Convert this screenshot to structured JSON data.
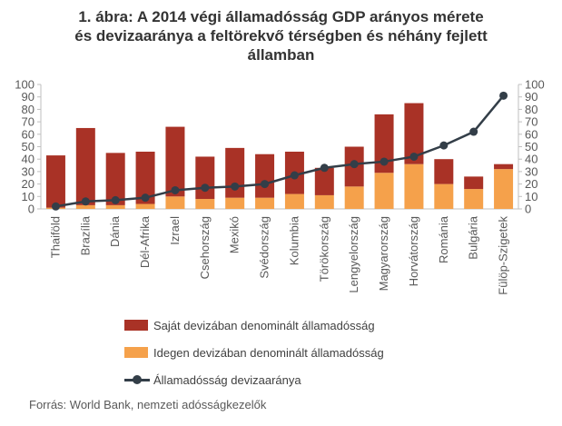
{
  "title": {
    "line1": "1. ábra: A 2014 végi államadósság GDP arányos mérete",
    "line2": "és devizaaránya a feltörekvő térségben és néhány fejlett",
    "line3": "államban"
  },
  "source": "Forrás: World Bank, nemzeti adósságkezelők",
  "colors": {
    "domestic": "#a93226",
    "foreign": "#f5a14b",
    "line": "#333e48"
  },
  "chart_data": {
    "type": "bar",
    "stacked": true,
    "categories": [
      "Thaiföld",
      "Brazília",
      "Dánia",
      "Dél-Afrika",
      "Izrael",
      "Csehország",
      "Mexikó",
      "Svédország",
      "Kolumbia",
      "Törökország",
      "Lengyelország",
      "Magyarország",
      "Horvátország",
      "Románia",
      "Bulgária",
      "Fülöp-Szigetek"
    ],
    "series": [
      {
        "name": "Idegen devizában denominált államadósság",
        "kind": "bar",
        "values": [
          1,
          3,
          3,
          4,
          10,
          8,
          9,
          9,
          12,
          11,
          18,
          29,
          36,
          20,
          16,
          32
        ]
      },
      {
        "name": "Saját devizában denominált államadósság",
        "kind": "bar",
        "values": [
          42,
          62,
          42,
          42,
          56,
          34,
          40,
          35,
          34,
          22,
          32,
          47,
          49,
          20,
          10,
          4
        ]
      },
      {
        "name": "Államadósság devizaaránya",
        "kind": "line",
        "axis": "right",
        "values": [
          2,
          6,
          7,
          9,
          15,
          17,
          18,
          20,
          27,
          33,
          36,
          38,
          42,
          51,
          62,
          91
        ]
      }
    ],
    "ylim_left": [
      0,
      100
    ],
    "ylim_right": [
      0,
      100
    ],
    "yticks": [
      0,
      10,
      20,
      30,
      40,
      50,
      60,
      70,
      80,
      90,
      100
    ],
    "legend_position": "bottom-left",
    "grid": false
  }
}
